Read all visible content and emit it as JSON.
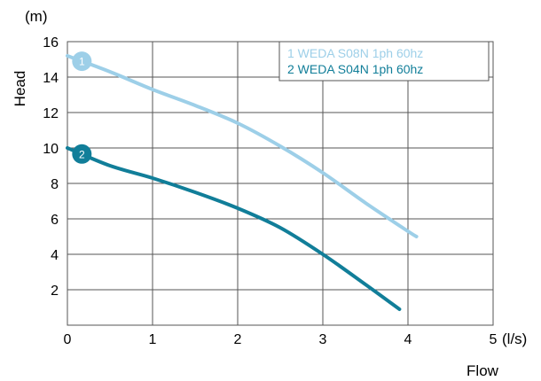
{
  "chart_data": {
    "type": "line",
    "xlabel": "Flow",
    "x_unit": "(l/s)",
    "ylabel": "Head",
    "y_unit": "(m)",
    "xlim": [
      0,
      5
    ],
    "ylim": [
      0,
      16
    ],
    "x_ticks": [
      "0",
      "1",
      "2",
      "3",
      "4",
      "5"
    ],
    "y_ticks": [
      "2",
      "4",
      "6",
      "8",
      "10",
      "12",
      "14",
      "16"
    ],
    "grid": true,
    "legend_position": "top-right",
    "series": [
      {
        "name": "1 WEDA S08N 1ph 60hz",
        "marker": "1",
        "color": "#9dcfe8",
        "x": [
          0,
          0.5,
          1,
          1.5,
          2,
          2.5,
          3,
          3.5,
          4,
          4.1
        ],
        "y": [
          15.2,
          14.3,
          13.3,
          12.4,
          11.4,
          10.1,
          8.6,
          6.9,
          5.3,
          5.0
        ]
      },
      {
        "name": "2 WEDA S04N 1ph 60hz",
        "marker": "2",
        "color": "#117e99",
        "x": [
          0,
          0.5,
          1,
          1.5,
          2,
          2.5,
          3,
          3.5,
          3.9
        ],
        "y": [
          10.0,
          9.0,
          8.3,
          7.5,
          6.6,
          5.5,
          4.0,
          2.3,
          0.9
        ]
      }
    ]
  }
}
